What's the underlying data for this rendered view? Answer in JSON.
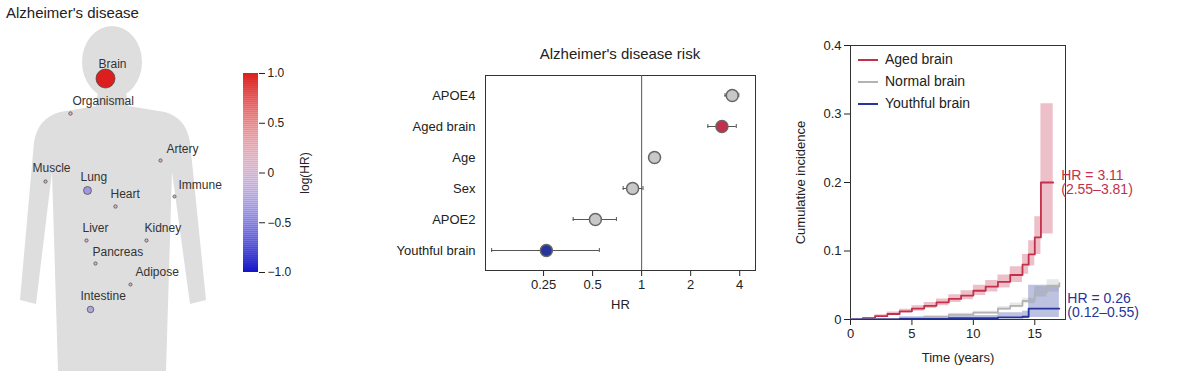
{
  "chart_data": [
    {
      "type": "body_map",
      "title": "Alzheimer's disease",
      "categories": [
        "Brain",
        "Organismal",
        "Artery",
        "Muscle",
        "Lung",
        "Heart",
        "Immune",
        "Liver",
        "Kidney",
        "Pancreas",
        "Adipose",
        "Intestine"
      ],
      "values": [
        1.13,
        0.03,
        0.02,
        0.02,
        -0.35,
        0.03,
        0.01,
        0.02,
        0.02,
        0.02,
        0.01,
        -0.25
      ],
      "colorbar": {
        "label": "log(HR)",
        "range": [
          -1,
          1
        ],
        "ticks": [
          {
            "value": 1,
            "label": "1.0"
          },
          0.5,
          0,
          {
            "value": -0.5,
            "label": "−0.5"
          },
          {
            "value": -1,
            "label": "−1.0"
          }
        ]
      }
    },
    {
      "type": "forest",
      "title": "Alzheimer's disease risk",
      "categories": [
        "APOE4",
        "Aged brain",
        "Age",
        "Sex",
        "APOE2",
        "Youthful brain"
      ],
      "values": [
        3.6,
        3.11,
        1.2,
        0.88,
        0.52,
        0.26
      ],
      "lower": [
        3.25,
        2.55,
        1.16,
        0.77,
        0.38,
        0.12
      ],
      "upper": [
        3.95,
        3.81,
        1.24,
        1.02,
        0.7,
        0.55
      ],
      "colors": [
        "#c8c8c8",
        "#c4304b",
        "#c8c8c8",
        "#c8c8c8",
        "#c8c8c8",
        "#27349b"
      ],
      "reference": 1,
      "xlabel": "HR",
      "log": "x",
      "xlim": [
        0.11,
        5
      ],
      "xticks": [
        0.25,
        0.5,
        1,
        2,
        4
      ]
    },
    {
      "type": "line",
      "xlabel": "Time (years)",
      "ylabel": "Cumulative incidence",
      "xlim": [
        0,
        17.5
      ],
      "xticks": [
        0,
        5,
        10,
        15
      ],
      "ylim": [
        0,
        0.4
      ],
      "yticks": [
        0,
        0.1,
        0.2,
        0.3,
        0.4
      ],
      "legend": "top-left",
      "series": [
        {
          "name": "Aged brain",
          "color": "#c4304b",
          "x": [
            0,
            1,
            2,
            3,
            4,
            5,
            6,
            7,
            8,
            9,
            10,
            11,
            12,
            13,
            14,
            14.5,
            15,
            15.5,
            16.5
          ],
          "values": [
            0,
            0.002,
            0.005,
            0.008,
            0.012,
            0.016,
            0.02,
            0.025,
            0.03,
            0.035,
            0.042,
            0.048,
            0.055,
            0.065,
            0.08,
            0.095,
            0.12,
            0.2,
            0.2
          ],
          "lower": [
            0,
            0.001,
            0.003,
            0.006,
            0.009,
            0.012,
            0.016,
            0.02,
            0.025,
            0.029,
            0.035,
            0.04,
            0.046,
            0.054,
            0.066,
            0.078,
            0.095,
            0.125,
            0.125
          ],
          "upper": [
            0,
            0.003,
            0.007,
            0.011,
            0.015,
            0.02,
            0.025,
            0.03,
            0.036,
            0.042,
            0.05,
            0.057,
            0.065,
            0.077,
            0.095,
            0.115,
            0.15,
            0.315,
            0.315
          ],
          "annotation": [
            "HR = 3.11",
            "(2.55–3.81)"
          ]
        },
        {
          "name": "Normal brain",
          "color": "#b3b3b3",
          "x": [
            0,
            2,
            4,
            6,
            8,
            10,
            12,
            13,
            14,
            15,
            16,
            17
          ],
          "values": [
            0,
            0.001,
            0.002,
            0.004,
            0.007,
            0.01,
            0.016,
            0.02,
            0.027,
            0.04,
            0.048,
            0.053
          ],
          "lower": [
            0,
            0.0005,
            0.0015,
            0.003,
            0.006,
            0.008,
            0.013,
            0.017,
            0.023,
            0.033,
            0.04,
            0.045
          ],
          "upper": [
            0,
            0.0015,
            0.003,
            0.005,
            0.009,
            0.012,
            0.019,
            0.024,
            0.031,
            0.048,
            0.058,
            0.065
          ]
        },
        {
          "name": "Youthful brain",
          "color": "#27349b",
          "x": [
            0,
            4,
            8,
            12,
            14,
            14.5,
            15.5,
            17
          ],
          "values": [
            0,
            0.001,
            0.002,
            0.003,
            0.004,
            0.016,
            0.016,
            0.016
          ],
          "lower": [
            0,
            0,
            0,
            0.001,
            0.001,
            0.003,
            0.003,
            0.003
          ],
          "upper": [
            0,
            0.004,
            0.006,
            0.01,
            0.012,
            0.05,
            0.05,
            0.05
          ],
          "annotation": [
            "HR = 0.26",
            "(0.12–0.55)"
          ]
        }
      ]
    }
  ]
}
